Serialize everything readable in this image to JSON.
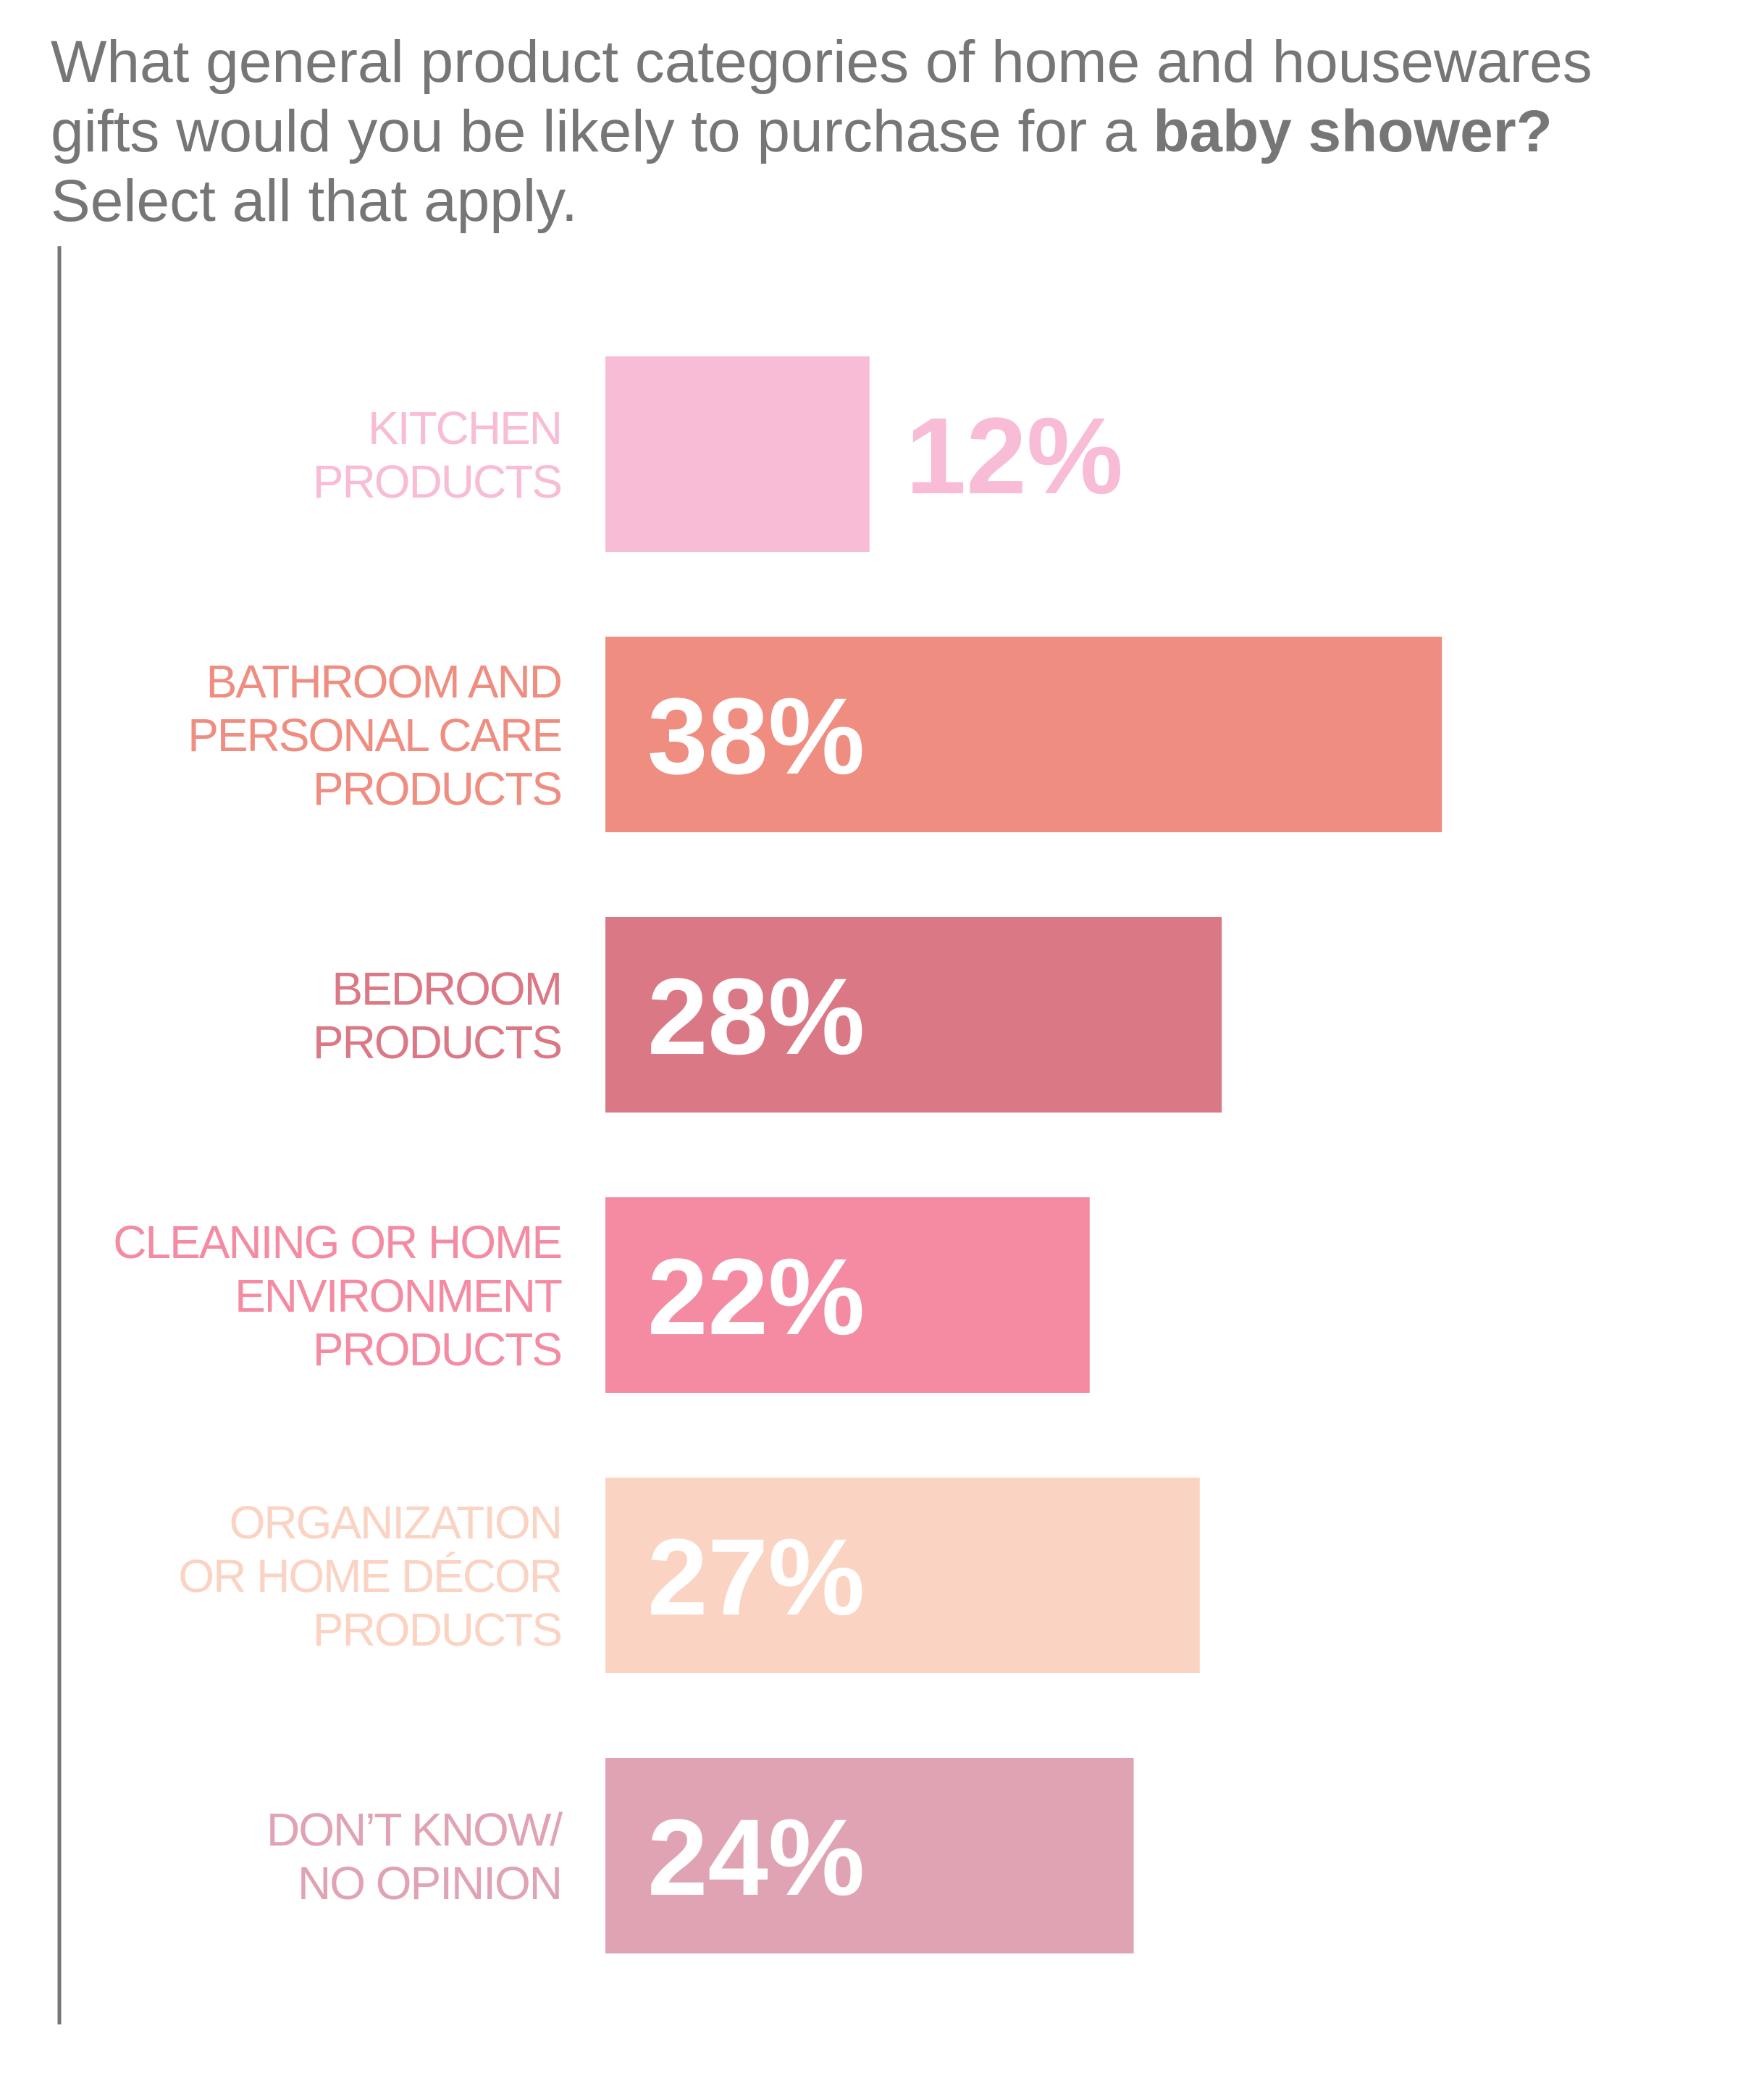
{
  "title": {
    "part1": "What general product categories of home and housewares gifts would you be likely to purchase for a ",
    "bold": "baby shower?",
    "part2": " Select all that apply."
  },
  "chart_data": {
    "type": "bar",
    "orientation": "horizontal",
    "categories": [
      [
        "KITCHEN",
        "PRODUCTS"
      ],
      [
        "BATHROOM AND",
        "PERSONAL CARE",
        "PRODUCTS"
      ],
      [
        "BEDROOM",
        "PRODUCTS"
      ],
      [
        "CLEANING OR HOME",
        "ENVIRONMENT",
        "PRODUCTS"
      ],
      [
        "ORGANIZATION",
        "OR HOME DÉCOR",
        "PRODUCTS"
      ],
      [
        "DON’T KNOW/",
        "NO OPINION"
      ]
    ],
    "values": [
      12,
      38,
      28,
      22,
      27,
      24
    ],
    "value_labels": [
      "12%",
      "38%",
      "28%",
      "22%",
      "27%",
      "24%"
    ],
    "colors": [
      "#f8bcd6",
      "#ee8d80",
      "#da7985",
      "#f48ba2",
      "#fbd3c3",
      "#e0a3b3"
    ],
    "label_inside": [
      false,
      true,
      true,
      true,
      true,
      true
    ],
    "axis_color": "#767676",
    "grid": false,
    "legend": "none"
  }
}
